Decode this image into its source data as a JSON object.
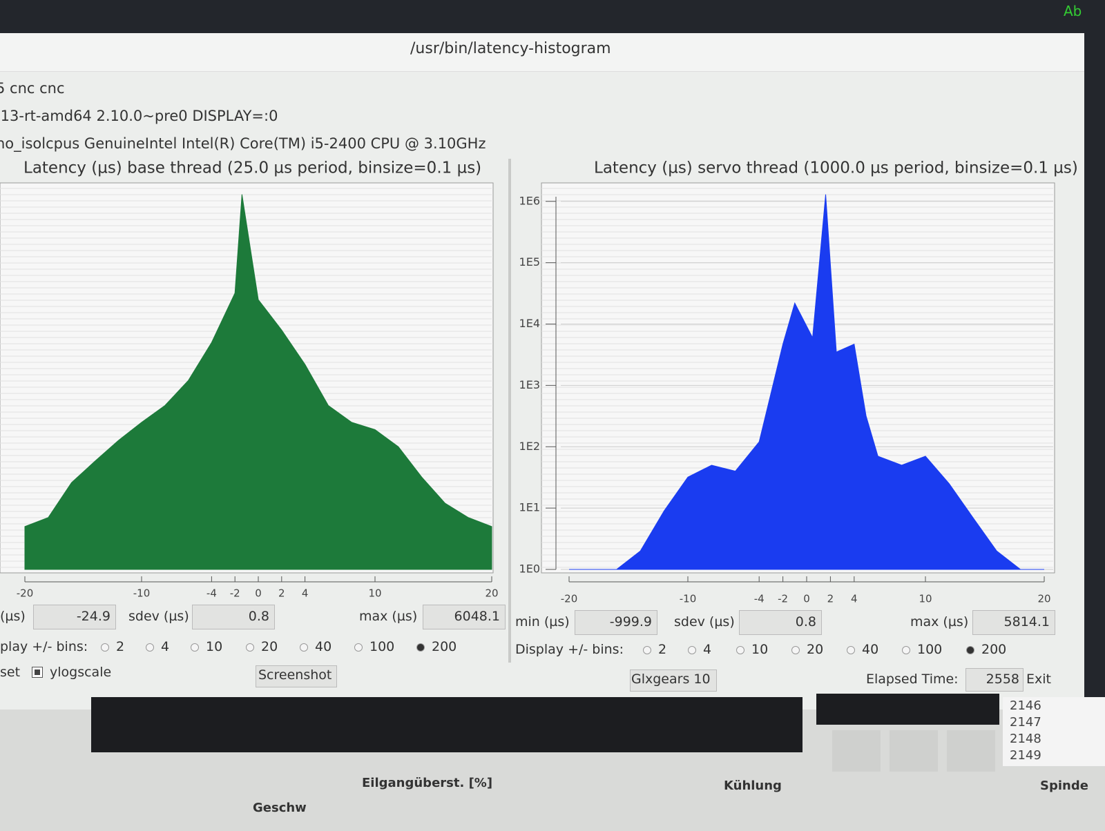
{
  "window": {
    "title": "/usr/bin/latency-histogram",
    "corner": "Ab"
  },
  "info": [
    "5 cnc cnc",
    ".13-rt-amd64  2.10.0~pre0  DISPLAY=:0",
    "no_isolcpus  GenuineIntel  Intel(R) Core(TM) i5-2400 CPU @ 3.10GHz"
  ],
  "chart_data": [
    {
      "type": "area",
      "title": "Latency (µs) base thread (25.0 µs period, binsize=0.1 µs)",
      "x": [
        -20,
        -18,
        -16,
        -14,
        -12,
        -10,
        -8,
        -6,
        -4,
        -2,
        -1.4,
        0,
        2,
        4,
        6,
        8,
        10,
        12,
        14,
        16,
        18,
        20
      ],
      "values": [
        5,
        7,
        26,
        58,
        126,
        250,
        470,
        1200,
        5000,
        32000,
        1300000,
        25000,
        8000,
        2200,
        470,
        250,
        190,
        100,
        32,
        12,
        7,
        5
      ],
      "color": "#1d7a3a",
      "log": true,
      "grid": true,
      "xlim": [
        -20,
        20
      ],
      "xticks": [
        -20,
        -10,
        -4,
        -2,
        0,
        2,
        4,
        10,
        20
      ],
      "ylim": [
        1,
        2000000
      ]
    },
    {
      "type": "area",
      "title": "Latency (µs) servo thread (1000.0 µs period, binsize=0.1 µs)",
      "x": [
        -20,
        -16,
        -14,
        -12,
        -10,
        -8,
        -6,
        -4,
        -2,
        -1,
        0.5,
        1.6,
        2.5,
        4,
        5,
        6,
        8,
        10,
        12,
        14,
        16,
        18,
        20
      ],
      "values": [
        1,
        1,
        2,
        9,
        32,
        50,
        40,
        120,
        4700,
        22000,
        6000,
        1300000,
        3500,
        4700,
        320,
        70,
        50,
        70,
        25,
        7,
        2,
        1,
        1
      ],
      "color": "#1a3cf0",
      "log": true,
      "grid": true,
      "xlim": [
        -20,
        20
      ],
      "xticks": [
        -20,
        -10,
        -4,
        -2,
        0,
        2,
        4,
        10,
        20
      ],
      "ylim": [
        1,
        2000000
      ],
      "yticks": [
        {
          "value": 1,
          "label": "1E0"
        },
        {
          "value": 10,
          "label": "1E1"
        },
        {
          "value": 100,
          "label": "1E2"
        },
        {
          "value": 1000,
          "label": "1E3"
        },
        {
          "value": 10000,
          "label": "1E4"
        },
        {
          "value": 100000,
          "label": "1E5"
        },
        {
          "value": 1000000,
          "label": "1E6"
        }
      ]
    }
  ],
  "panels": [
    {
      "min_label": "(µs)",
      "min": -24.9,
      "sdev_label": "sdev (µs)",
      "sdev": 0.8,
      "max_label": "max (µs)",
      "max": 6048.1,
      "bins_label": "play +/- bins:"
    },
    {
      "min_label": "min (µs)",
      "min": -999.9,
      "sdev_label": "sdev (µs)",
      "sdev": 0.8,
      "max_label": "max (µs)",
      "max": 5814.1,
      "bins_label": "Display +/- bins:"
    }
  ],
  "bins_options": [
    2,
    4,
    10,
    20,
    40,
    100,
    200
  ],
  "bins_selected": 200,
  "controls": {
    "reset": "set",
    "ylogscale": "ylogscale",
    "ylogscale_checked": true,
    "screenshot": "Screenshot",
    "glxgears": "Glxgears 10",
    "elapsed_label": "Elapsed Time:",
    "elapsed": 2558,
    "exit": "Exit"
  },
  "background": {
    "line_numbers": [
      2146,
      2147,
      2148,
      2149
    ],
    "labels": [
      "Eilgangüberst. [%]",
      "Kühlung",
      "Spinde",
      "Geschw"
    ]
  }
}
